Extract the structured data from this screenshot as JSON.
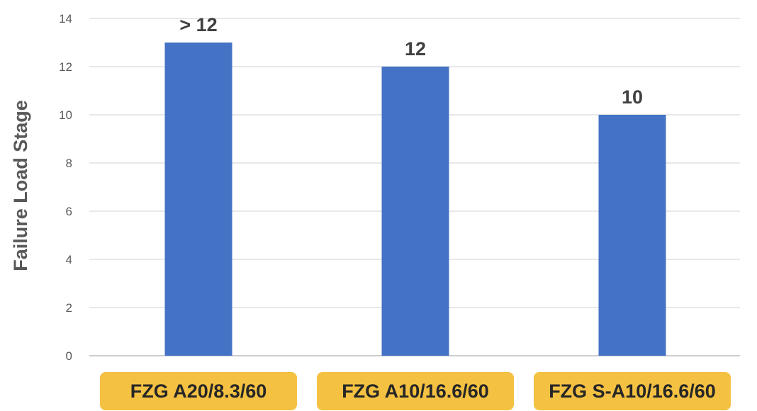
{
  "chart_data": {
    "type": "bar",
    "title": "",
    "xlabel": "",
    "ylabel": "Failure Load Stage",
    "categories": [
      "FZG A20/8.3/60",
      "FZG A10/16.6/60",
      "FZG S-A10/16.6/60"
    ],
    "values": [
      13,
      12,
      10
    ],
    "data_labels": [
      "> 12",
      "12",
      "10"
    ],
    "ylim": [
      0,
      14
    ],
    "yticks": [
      0,
      2,
      4,
      6,
      8,
      10,
      12,
      14
    ],
    "grid": true,
    "legend": "none",
    "colors": {
      "bar": "#4472C4",
      "category_box": "#F4C142",
      "grid": "#D9D9D9"
    }
  }
}
